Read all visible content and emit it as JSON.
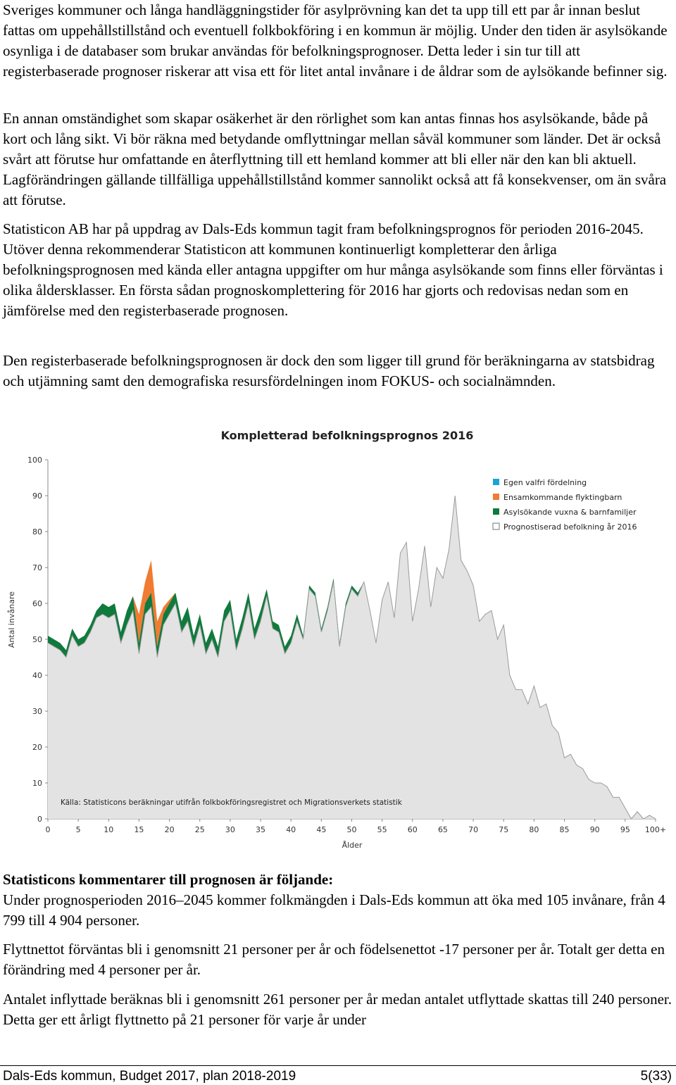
{
  "paragraphs": [
    "Sveriges kommuner och långa handläggningstider för asylprövning kan det ta upp till ett par år innan beslut fattas om uppehållstillstånd och eventuell folkbokföring i en kommun är möjlig. Under den tiden är asylsökande osynliga i de databaser som brukar användas för befolkningsprognoser. Detta leder i sin tur till att registerbaserade prognoser riskerar att visa ett för litet antal invånare i de åldrar som de aylsökande befinner sig.",
    "En annan omständighet som skapar osäkerhet är den rörlighet som kan antas finnas hos asylsökande, både på kort och lång sikt. Vi bör räkna med betydande omflyttningar mellan såväl kommuner som länder. Det är också svårt att förutse hur omfattande en återflyttning till ett hemland kommer att bli eller när den kan bli aktuell. Lagförändringen gällande tillfälliga uppehållstillstånd kommer sannolikt också att få konsekvenser, om än svåra att förutse.",
    "Statisticon AB har på uppdrag av Dals-Eds kommun tagit fram befolkningsprognos för perioden 2016-2045. Utöver denna rekommenderar Statisticon att kommunen kontinuerligt kompletterar den årliga befolkningsprognosen med kända eller antagna uppgifter om hur många asylsökande som finns eller förväntas i olika åldersklasser. En första sådan prognoskomplettering för 2016 har gjorts och redovisas nedan som en jämförelse med den registerbaserade prognosen.",
    "Den registerbaserade befolkningsprognosen är dock den som ligger till grund för beräkningarna av statsbidrag och utjämning samt den demografiska resursfördelningen inom FOKUS- och socialnämnden."
  ],
  "comments_heading": "Statisticons kommentarer till prognosen är följande:",
  "comments": [
    "Under prognosperioden 2016–2045 kommer folkmängden i Dals-Eds kommun att öka med 105 invånare, från 4 799 till 4 904 personer.",
    "Flyttnettot förväntas bli i genomsnitt 21 personer per år och födelsenettot -17 personer per år. Totalt ger detta en förändring med 4 personer per år.",
    "Antalet inflyttade beräknas bli i genomsnitt 261 personer per år medan antalet utflyttade skattas till 240 personer. Detta ger ett årligt flyttnetto på 21 personer för varje år under"
  ],
  "footer": {
    "left": "Dals-Eds kommun, Budget 2017, plan 2018-2019",
    "right": "5(33)"
  },
  "chart_data": {
    "type": "area",
    "title": "Kompletterad befolkningsprognos  2016",
    "xlabel": "Ålder",
    "ylabel": "Antal invånare",
    "source": "Källa: Statisticons beräkningar utifrån folkbokföringsregistret och Migrationsverkets statistik",
    "ylim": [
      0,
      100
    ],
    "yticks": [
      0,
      10,
      20,
      30,
      40,
      50,
      60,
      70,
      80,
      90,
      100
    ],
    "xtick_labels": [
      "0",
      "5",
      "10",
      "15",
      "20",
      "25",
      "30",
      "35",
      "40",
      "45",
      "50",
      "55",
      "60",
      "65",
      "70",
      "75",
      "80",
      "85",
      "90",
      "95",
      "100+"
    ],
    "legend_position": "top-right",
    "x": [
      0,
      1,
      2,
      3,
      4,
      5,
      6,
      7,
      8,
      9,
      10,
      11,
      12,
      13,
      14,
      15,
      16,
      17,
      18,
      19,
      20,
      21,
      22,
      23,
      24,
      25,
      26,
      27,
      28,
      29,
      30,
      31,
      32,
      33,
      34,
      35,
      36,
      37,
      38,
      39,
      40,
      41,
      42,
      43,
      44,
      45,
      46,
      47,
      48,
      49,
      50,
      51,
      52,
      53,
      54,
      55,
      56,
      57,
      58,
      59,
      60,
      61,
      62,
      63,
      64,
      65,
      66,
      67,
      68,
      69,
      70,
      71,
      72,
      73,
      74,
      75,
      76,
      77,
      78,
      79,
      80,
      81,
      82,
      83,
      84,
      85,
      86,
      87,
      88,
      89,
      90,
      91,
      92,
      93,
      94,
      95,
      96,
      97,
      98,
      99,
      100
    ],
    "series": [
      {
        "name": "Prognostiserad befolkning år 2016",
        "color": "#e3e3e3",
        "values": [
          49,
          48,
          47,
          45,
          51,
          48,
          49,
          52,
          56,
          57,
          56,
          57,
          49,
          54,
          58,
          46,
          57,
          59,
          45,
          54,
          57,
          60,
          52,
          55,
          48,
          54,
          46,
          50,
          45,
          55,
          58,
          47,
          53,
          60,
          50,
          55,
          62,
          53,
          52,
          46,
          49,
          55,
          50,
          64,
          62,
          52,
          58,
          66,
          48,
          59,
          64,
          62,
          66,
          58,
          49,
          61,
          66,
          56,
          74,
          77,
          55,
          64,
          76,
          59,
          70,
          67,
          75,
          90,
          72,
          69,
          65,
          55,
          57,
          58,
          50,
          54,
          40,
          36,
          36,
          32,
          37,
          31,
          32,
          26,
          24,
          17,
          18,
          15,
          14,
          11,
          10,
          10,
          9,
          6,
          6,
          3,
          0,
          2,
          0,
          1,
          0
        ]
      },
      {
        "name": "Asylsökande vuxna & barnfamiljer",
        "color": "#0f7a3c",
        "values": [
          2,
          2,
          2,
          2,
          2,
          2,
          2,
          2,
          2,
          3,
          3,
          3,
          3,
          4,
          4,
          3,
          3,
          4,
          3,
          3,
          3,
          3,
          3,
          4,
          3,
          3,
          3,
          3,
          3,
          3,
          3,
          3,
          3,
          3,
          3,
          3,
          2,
          2,
          2,
          2,
          2,
          2,
          1,
          1,
          1,
          1,
          1,
          1,
          1,
          1,
          1,
          1,
          0,
          0,
          0,
          0,
          0,
          0,
          0,
          0,
          0,
          0,
          0,
          0,
          0,
          0,
          0,
          0,
          0,
          0,
          0,
          0,
          0,
          0,
          0,
          0,
          0,
          0,
          0,
          0,
          0,
          0,
          0,
          0,
          0,
          0,
          0,
          0,
          0,
          0,
          0,
          0,
          0,
          0,
          0,
          0,
          0,
          0,
          0,
          0,
          0
        ]
      },
      {
        "name": "Ensamkommande flyktingbarn",
        "color": "#f07b32",
        "values": [
          0,
          0,
          0,
          0,
          0,
          0,
          0,
          0,
          0,
          0,
          0,
          0,
          0,
          0,
          0,
          8,
          6,
          9,
          7,
          2,
          1,
          0,
          0,
          0,
          0,
          0,
          0,
          0,
          0,
          0,
          0,
          0,
          0,
          0,
          0,
          0,
          0,
          0,
          0,
          0,
          0,
          0,
          0,
          0,
          0,
          0,
          0,
          0,
          0,
          0,
          0,
          0,
          0,
          0,
          0,
          0,
          0,
          0,
          0,
          0,
          0,
          0,
          0,
          0,
          0,
          0,
          0,
          0,
          0,
          0,
          0,
          0,
          0,
          0,
          0,
          0,
          0,
          0,
          0,
          0,
          0,
          0,
          0,
          0,
          0,
          0,
          0,
          0,
          0,
          0,
          0,
          0,
          0,
          0,
          0,
          0,
          0,
          0,
          0,
          0,
          0
        ]
      },
      {
        "name": "Egen valfri fördelning",
        "color": "#1aa3d9",
        "values": [
          0,
          0,
          0,
          0,
          0,
          0,
          0,
          0,
          0,
          0,
          0,
          0,
          0,
          0,
          0,
          0,
          0,
          0,
          0,
          0,
          0,
          0,
          0,
          0,
          0,
          0,
          0,
          0,
          0,
          0,
          0,
          0,
          0,
          0,
          0,
          0,
          0,
          0,
          0,
          0,
          0,
          0,
          0,
          0,
          0,
          0,
          0,
          0,
          0,
          0,
          0,
          0,
          0,
          0,
          0,
          0,
          0,
          0,
          0,
          0,
          0,
          0,
          0,
          0,
          0,
          0,
          0,
          0,
          0,
          0,
          0,
          0,
          0,
          0,
          0,
          0,
          0,
          0,
          0,
          0,
          0,
          0,
          0,
          0,
          0,
          0,
          0,
          0,
          0,
          0,
          0,
          0,
          0,
          0,
          0,
          0,
          0,
          0,
          0,
          0,
          0
        ]
      }
    ],
    "legend_order": [
      "Egen valfri fördelning",
      "Ensamkommande flyktingbarn",
      "Asylsökande vuxna & barnfamiljer",
      "Prognostiserad befolkning år 2016"
    ]
  }
}
